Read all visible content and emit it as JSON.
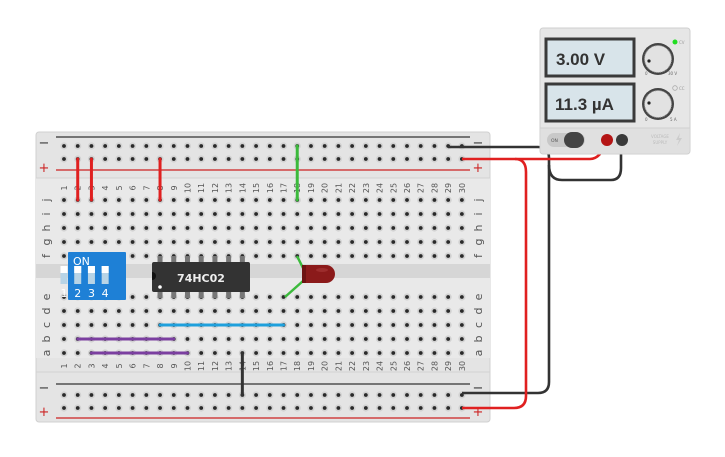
{
  "power_supply": {
    "voltage_display": "3.00 V",
    "current_display": "11.3 µA",
    "cv_label": "CV",
    "cc_label": "CC",
    "voltage_knob_min": "0",
    "voltage_knob_max": "30 V",
    "current_knob_min": "0",
    "current_knob_max": "5 A",
    "power_switch_label": "ON",
    "brand_label_line1": "VOLTAGE",
    "brand_label_line2": "SUPPLY",
    "cv_led_color": "#22dd22"
  },
  "breadboard": {
    "columns": 30,
    "rows_top": [
      "j",
      "i",
      "h",
      "g",
      "f"
    ],
    "rows_bottom": [
      "e",
      "d",
      "c",
      "b",
      "a"
    ],
    "rail_minus_label": "−",
    "rail_plus_label": "+"
  },
  "components": {
    "dip_switch": {
      "label": "ON",
      "switches": [
        "1",
        "2",
        "3",
        "4"
      ],
      "color": "#1e80d6"
    },
    "ic": {
      "label": "74HC02",
      "columns": "8-14"
    },
    "led": {
      "color": "#8b1a1a",
      "anode": "f18",
      "cathode": "e17"
    }
  },
  "wires": [
    {
      "color": "#e02020",
      "from": [
        "top+",
        2
      ],
      "to": [
        "j",
        2
      ]
    },
    {
      "color": "#e02020",
      "from": [
        "top+",
        3
      ],
      "to": [
        "j",
        3
      ]
    },
    {
      "color": "#e02020",
      "from": [
        "top+",
        8
      ],
      "to": [
        "j",
        8
      ]
    },
    {
      "color": "#3cba3c",
      "from": [
        "top-",
        18
      ],
      "to": [
        "j",
        18
      ]
    },
    {
      "color": "#1ea0dc",
      "from": [
        "c",
        8
      ],
      "to": [
        "c",
        17
      ]
    },
    {
      "color": "#7b3fa0",
      "from": [
        "b",
        2
      ],
      "to": [
        "b",
        9
      ]
    },
    {
      "color": "#7b3fa0",
      "from": [
        "a",
        3
      ],
      "to": [
        "a",
        10
      ]
    },
    {
      "color": "#333333",
      "from": [
        "a",
        14
      ],
      "to": [
        "bot-",
        14
      ]
    }
  ],
  "supply_wires": [
    {
      "color": "#e02020",
      "terminal": "positive",
      "to": [
        "top+",
        30,
        "bot+",
        30
      ]
    },
    {
      "color": "#333333",
      "terminal": "negative",
      "to": [
        "top-",
        29,
        "bot-",
        30
      ]
    }
  ]
}
